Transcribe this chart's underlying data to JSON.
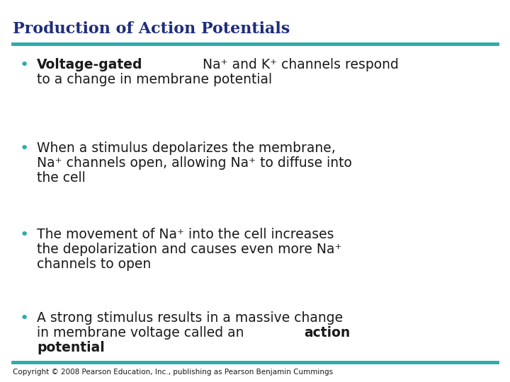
{
  "title": "Production of Action Potentials",
  "title_color": "#1F2D7B",
  "title_fontsize": 16,
  "bg_color": "#FFFFFF",
  "line_color": "#2AACAA",
  "line_thickness": 3.5,
  "bullet_color": "#2AACAA",
  "text_color": "#1a1a1a",
  "copyright": "Copyright © 2008 Pearson Education, Inc., publishing as Pearson Benjamin Cummings",
  "copyright_fontsize": 7.5,
  "bullet_fontsize": 13.5,
  "bullet_lines": [
    [
      {
        "t": "Voltage-gated",
        "b": true
      },
      {
        "t": " Na⁺ and K⁺ channels respond",
        "b": false
      },
      {
        "t": "\nto a change in membrane potential",
        "b": false
      }
    ],
    [
      {
        "t": "When a stimulus depolarizes the membrane,",
        "b": false
      },
      {
        "t": "\nNa⁺ channels open, allowing Na⁺ to diffuse into",
        "b": false
      },
      {
        "t": "\nthe cell",
        "b": false
      }
    ],
    [
      {
        "t": "The movement of Na⁺ into the cell increases",
        "b": false
      },
      {
        "t": "\nthe depolarization and causes even more Na⁺",
        "b": false
      },
      {
        "t": "\nchannels to open",
        "b": false
      }
    ],
    [
      {
        "t": "A strong stimulus results in a massive change",
        "b": false
      },
      {
        "t": "\nin membrane voltage called an ",
        "b": false
      },
      {
        "t": "action\npotential",
        "b": true
      }
    ]
  ]
}
